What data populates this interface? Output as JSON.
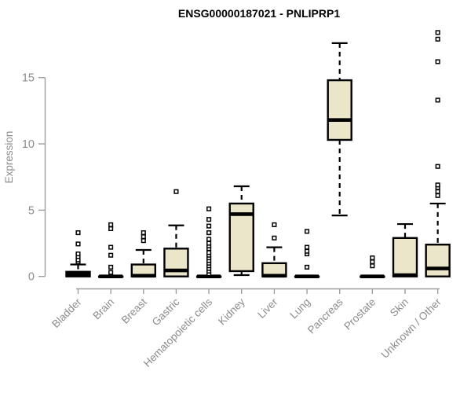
{
  "colors": {
    "box_fill": "#EBE6CA",
    "box_stroke": "#000000",
    "axis": "#9E9E9E",
    "tick_label": "#8C8C8C",
    "title": "#000000",
    "background": "#FFFFFF"
  },
  "chart_data": {
    "type": "boxplot",
    "title": "ENSG00000187021 - PNLIPRP1",
    "xlabel": "",
    "ylabel": "Expression",
    "yticks": [
      0,
      5,
      10,
      15
    ],
    "ylim": [
      -0.6,
      18.8
    ],
    "grid": false,
    "legend": "none",
    "categories": [
      "Bladder",
      "Brain",
      "Breast",
      "Gastric",
      "Hematopoietic cells",
      "Kidney",
      "Liver",
      "Lung",
      "Pancreas",
      "Prostate",
      "Skin",
      "Unknown / Other"
    ],
    "boxes": [
      {
        "category": "Bladder",
        "whisker_low": 0,
        "q1": 0,
        "median": 0.15,
        "q3": 0.35,
        "whisker_high": 0.9,
        "outliers": [
          1.1,
          1.25,
          1.5,
          1.7,
          2.45,
          3.3
        ]
      },
      {
        "category": "Brain",
        "whisker_low": 0,
        "q1": 0,
        "median": 0,
        "q3": 0,
        "whisker_high": 0,
        "outliers": [
          0.3,
          0.7,
          1.6,
          2.2,
          3.6,
          3.9
        ]
      },
      {
        "category": "Breast",
        "whisker_low": 0,
        "q1": 0,
        "median": 0.05,
        "q3": 0.9,
        "whisker_high": 2.0,
        "outliers": [
          2.7,
          3.0,
          3.3
        ]
      },
      {
        "category": "Gastric",
        "whisker_low": 0,
        "q1": 0,
        "median": 0.45,
        "q3": 2.1,
        "whisker_high": 3.85,
        "outliers": [
          6.4
        ]
      },
      {
        "category": "Hematopoietic cells",
        "whisker_low": 0,
        "q1": 0,
        "median": 0,
        "q3": 0,
        "whisker_high": 0,
        "outliers": [
          0.2,
          0.4,
          0.6,
          0.8,
          1.0,
          1.2,
          1.4,
          1.6,
          1.8,
          2.1,
          2.3,
          2.5,
          2.8,
          3.3,
          3.3,
          3.8,
          4.3,
          5.1
        ]
      },
      {
        "category": "Kidney",
        "whisker_low": 0.1,
        "q1": 0.4,
        "median": 4.7,
        "q3": 5.5,
        "whisker_high": 6.8,
        "outliers": []
      },
      {
        "category": "Liver",
        "whisker_low": 0,
        "q1": 0,
        "median": 0.05,
        "q3": 1.0,
        "whisker_high": 2.2,
        "outliers": [
          2.9,
          3.9
        ]
      },
      {
        "category": "Lung",
        "whisker_low": 0,
        "q1": 0,
        "median": 0,
        "q3": 0,
        "whisker_high": 0,
        "outliers": [
          0.7,
          1.7,
          1.9,
          2.2,
          3.4
        ]
      },
      {
        "category": "Pancreas",
        "whisker_low": 4.6,
        "q1": 10.3,
        "median": 11.8,
        "q3": 14.8,
        "whisker_high": 17.6,
        "outliers": []
      },
      {
        "category": "Prostate",
        "whisker_low": 0,
        "q1": 0,
        "median": 0,
        "q3": 0,
        "whisker_high": 0,
        "outliers": [
          0.8,
          1.1,
          1.4
        ]
      },
      {
        "category": "Skin",
        "whisker_low": 0,
        "q1": 0,
        "median": 0.1,
        "q3": 2.9,
        "whisker_high": 3.95,
        "outliers": []
      },
      {
        "category": "Unknown / Other",
        "whisker_low": 0,
        "q1": 0,
        "median": 0.6,
        "q3": 2.4,
        "whisker_high": 5.5,
        "outliers": [
          6.1,
          6.4,
          6.7,
          6.9,
          8.3,
          13.3,
          16.2,
          17.9,
          18.4
        ]
      }
    ]
  }
}
